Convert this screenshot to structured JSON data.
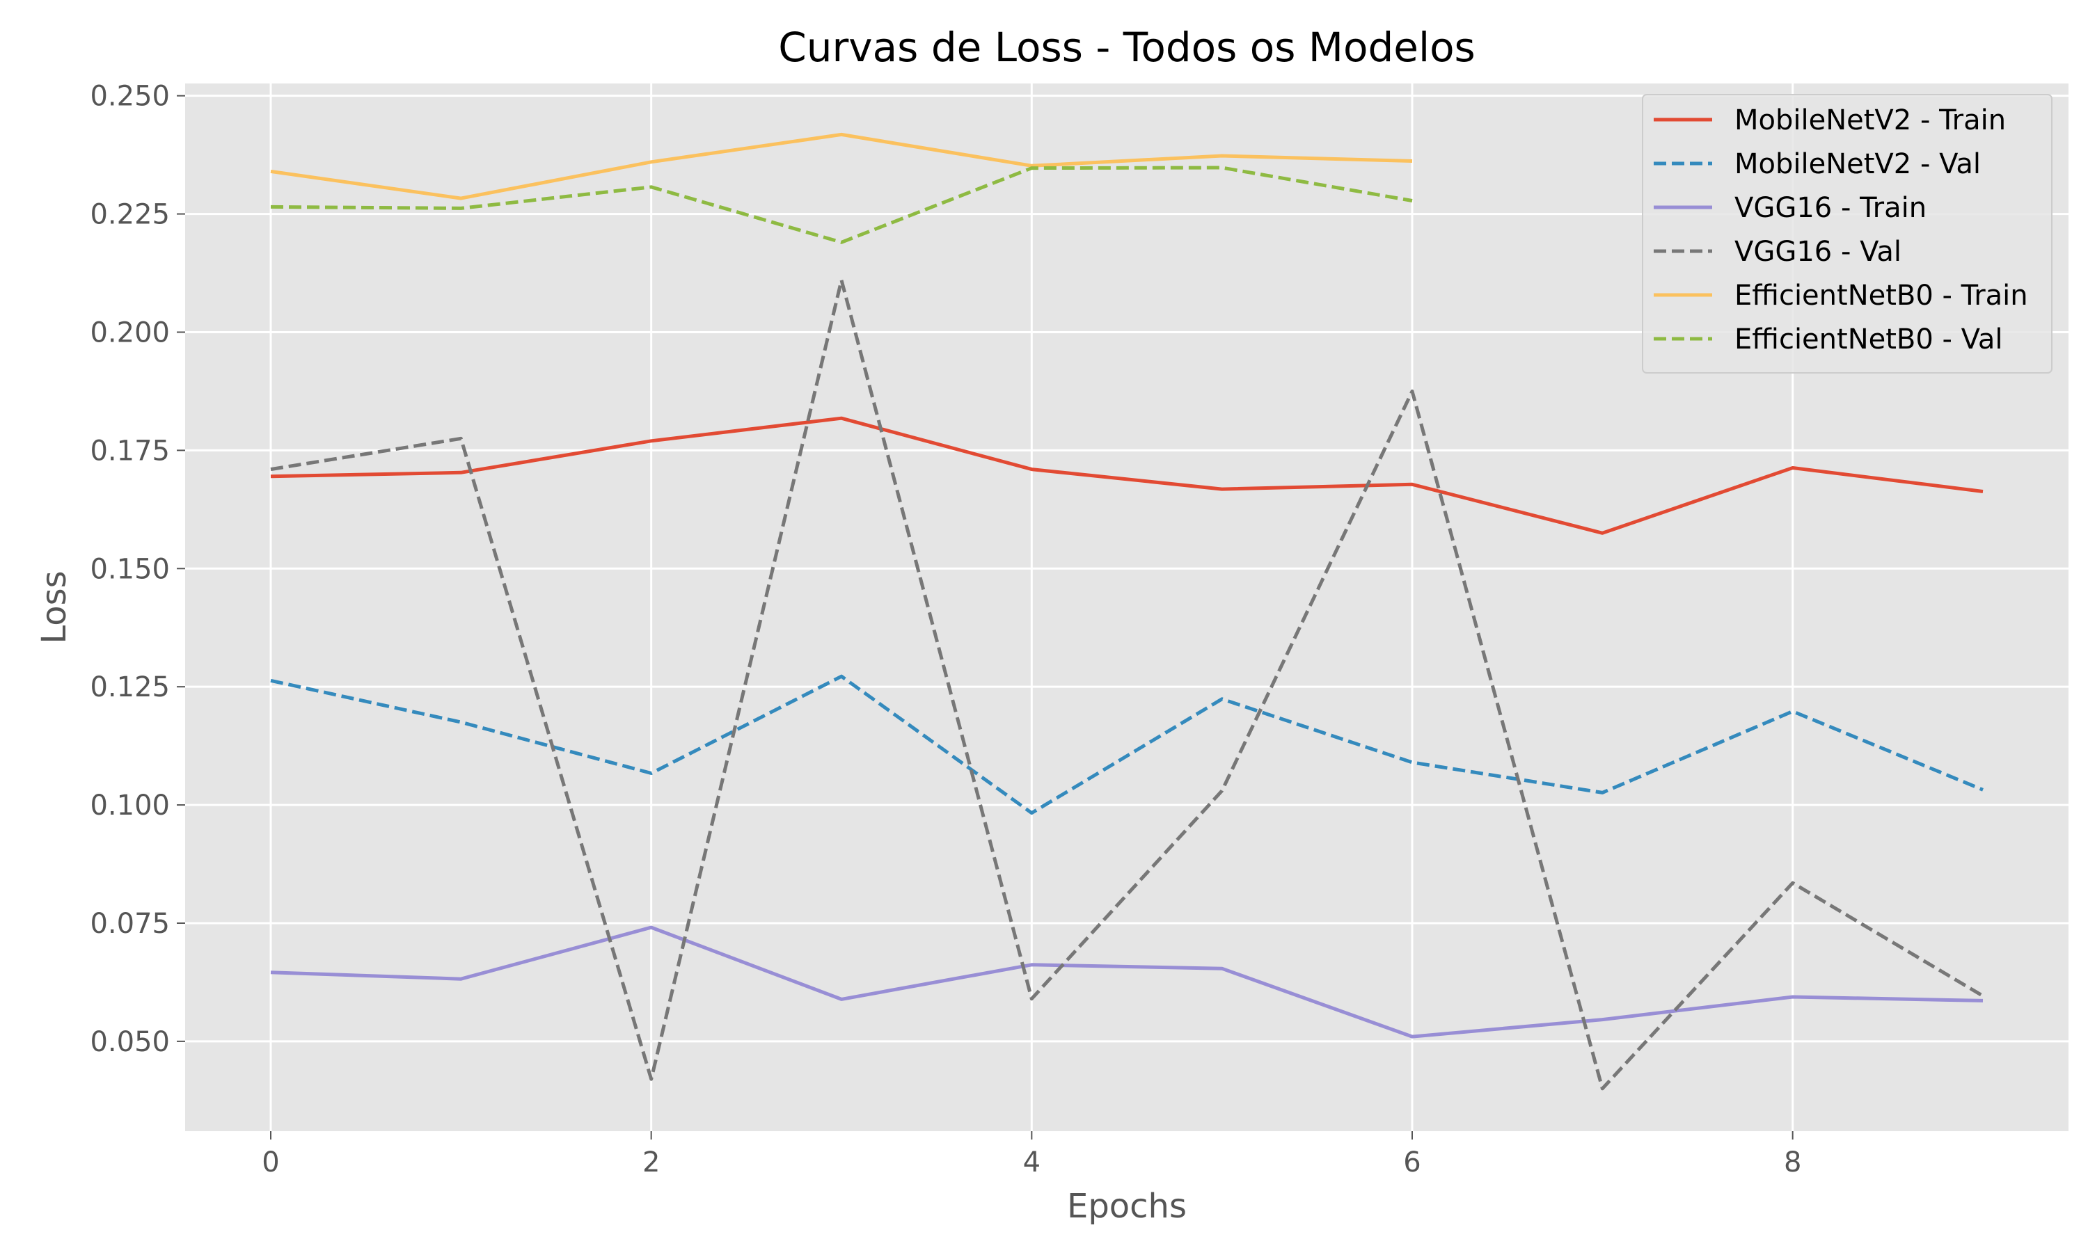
{
  "chart_data": {
    "type": "line",
    "title": "Curvas de Loss - Todos os Modelos",
    "xlabel": "Epochs",
    "ylabel": "Loss",
    "xlim": [
      -0.45,
      9.45
    ],
    "ylim": [
      0.031,
      0.2526
    ],
    "xticks": [
      0,
      2,
      4,
      6,
      8
    ],
    "xtick_labels": [
      "0",
      "2",
      "4",
      "6",
      "8"
    ],
    "yticks": [
      0.05,
      0.075,
      0.1,
      0.125,
      0.15,
      0.175,
      0.2,
      0.225,
      0.25
    ],
    "ytick_labels": [
      "0.050",
      "0.075",
      "0.100",
      "0.125",
      "0.150",
      "0.175",
      "0.200",
      "0.225",
      "0.250"
    ],
    "grid": true,
    "legend_position": "upper right",
    "style": {
      "plot_background": "#e5e5e5",
      "grid_color": "#ffffff",
      "tick_color": "#555555"
    },
    "series": [
      {
        "name": "MobileNetV2 - Train",
        "color": "#e24a33",
        "dashed": false,
        "x": [
          0,
          1,
          2,
          3,
          4,
          5,
          6,
          7,
          8,
          9
        ],
        "values": [
          0.1695,
          0.1703,
          0.177,
          0.1818,
          0.171,
          0.1668,
          0.1678,
          0.1575,
          0.1713,
          0.1663
        ]
      },
      {
        "name": "MobileNetV2 - Val",
        "color": "#348abd",
        "dashed": true,
        "x": [
          0,
          1,
          2,
          3,
          4,
          5,
          6,
          7,
          8,
          9
        ],
        "values": [
          0.1263,
          0.1175,
          0.1067,
          0.1272,
          0.0983,
          0.1224,
          0.109,
          0.1026,
          0.1198,
          0.1032
        ]
      },
      {
        "name": "VGG16 - Train",
        "color": "#988ed5",
        "dashed": false,
        "x": [
          0,
          1,
          2,
          3,
          4,
          5,
          6,
          7,
          8,
          9
        ],
        "values": [
          0.0646,
          0.0632,
          0.0741,
          0.0589,
          0.0662,
          0.0654,
          0.051,
          0.0546,
          0.0594,
          0.0586
        ]
      },
      {
        "name": "VGG16 - Val",
        "color": "#777777",
        "dashed": true,
        "x": [
          0,
          1,
          2,
          3,
          4,
          5,
          6,
          7,
          8,
          9
        ],
        "values": [
          0.171,
          0.1775,
          0.042,
          0.211,
          0.059,
          0.103,
          0.1875,
          0.04,
          0.0835,
          0.0596
        ]
      },
      {
        "name": "EfficientNetB0 - Train",
        "color": "#fbc15e",
        "dashed": false,
        "x": [
          0,
          1,
          2,
          3,
          4,
          5,
          6
        ],
        "values": [
          0.234,
          0.2283,
          0.236,
          0.2418,
          0.2352,
          0.2373,
          0.2362
        ]
      },
      {
        "name": "EfficientNetB0 - Val",
        "color": "#8eba42",
        "dashed": true,
        "x": [
          0,
          1,
          2,
          3,
          4,
          5,
          6
        ],
        "values": [
          0.2265,
          0.2262,
          0.2307,
          0.219,
          0.2347,
          0.2348,
          0.2278
        ]
      }
    ]
  }
}
